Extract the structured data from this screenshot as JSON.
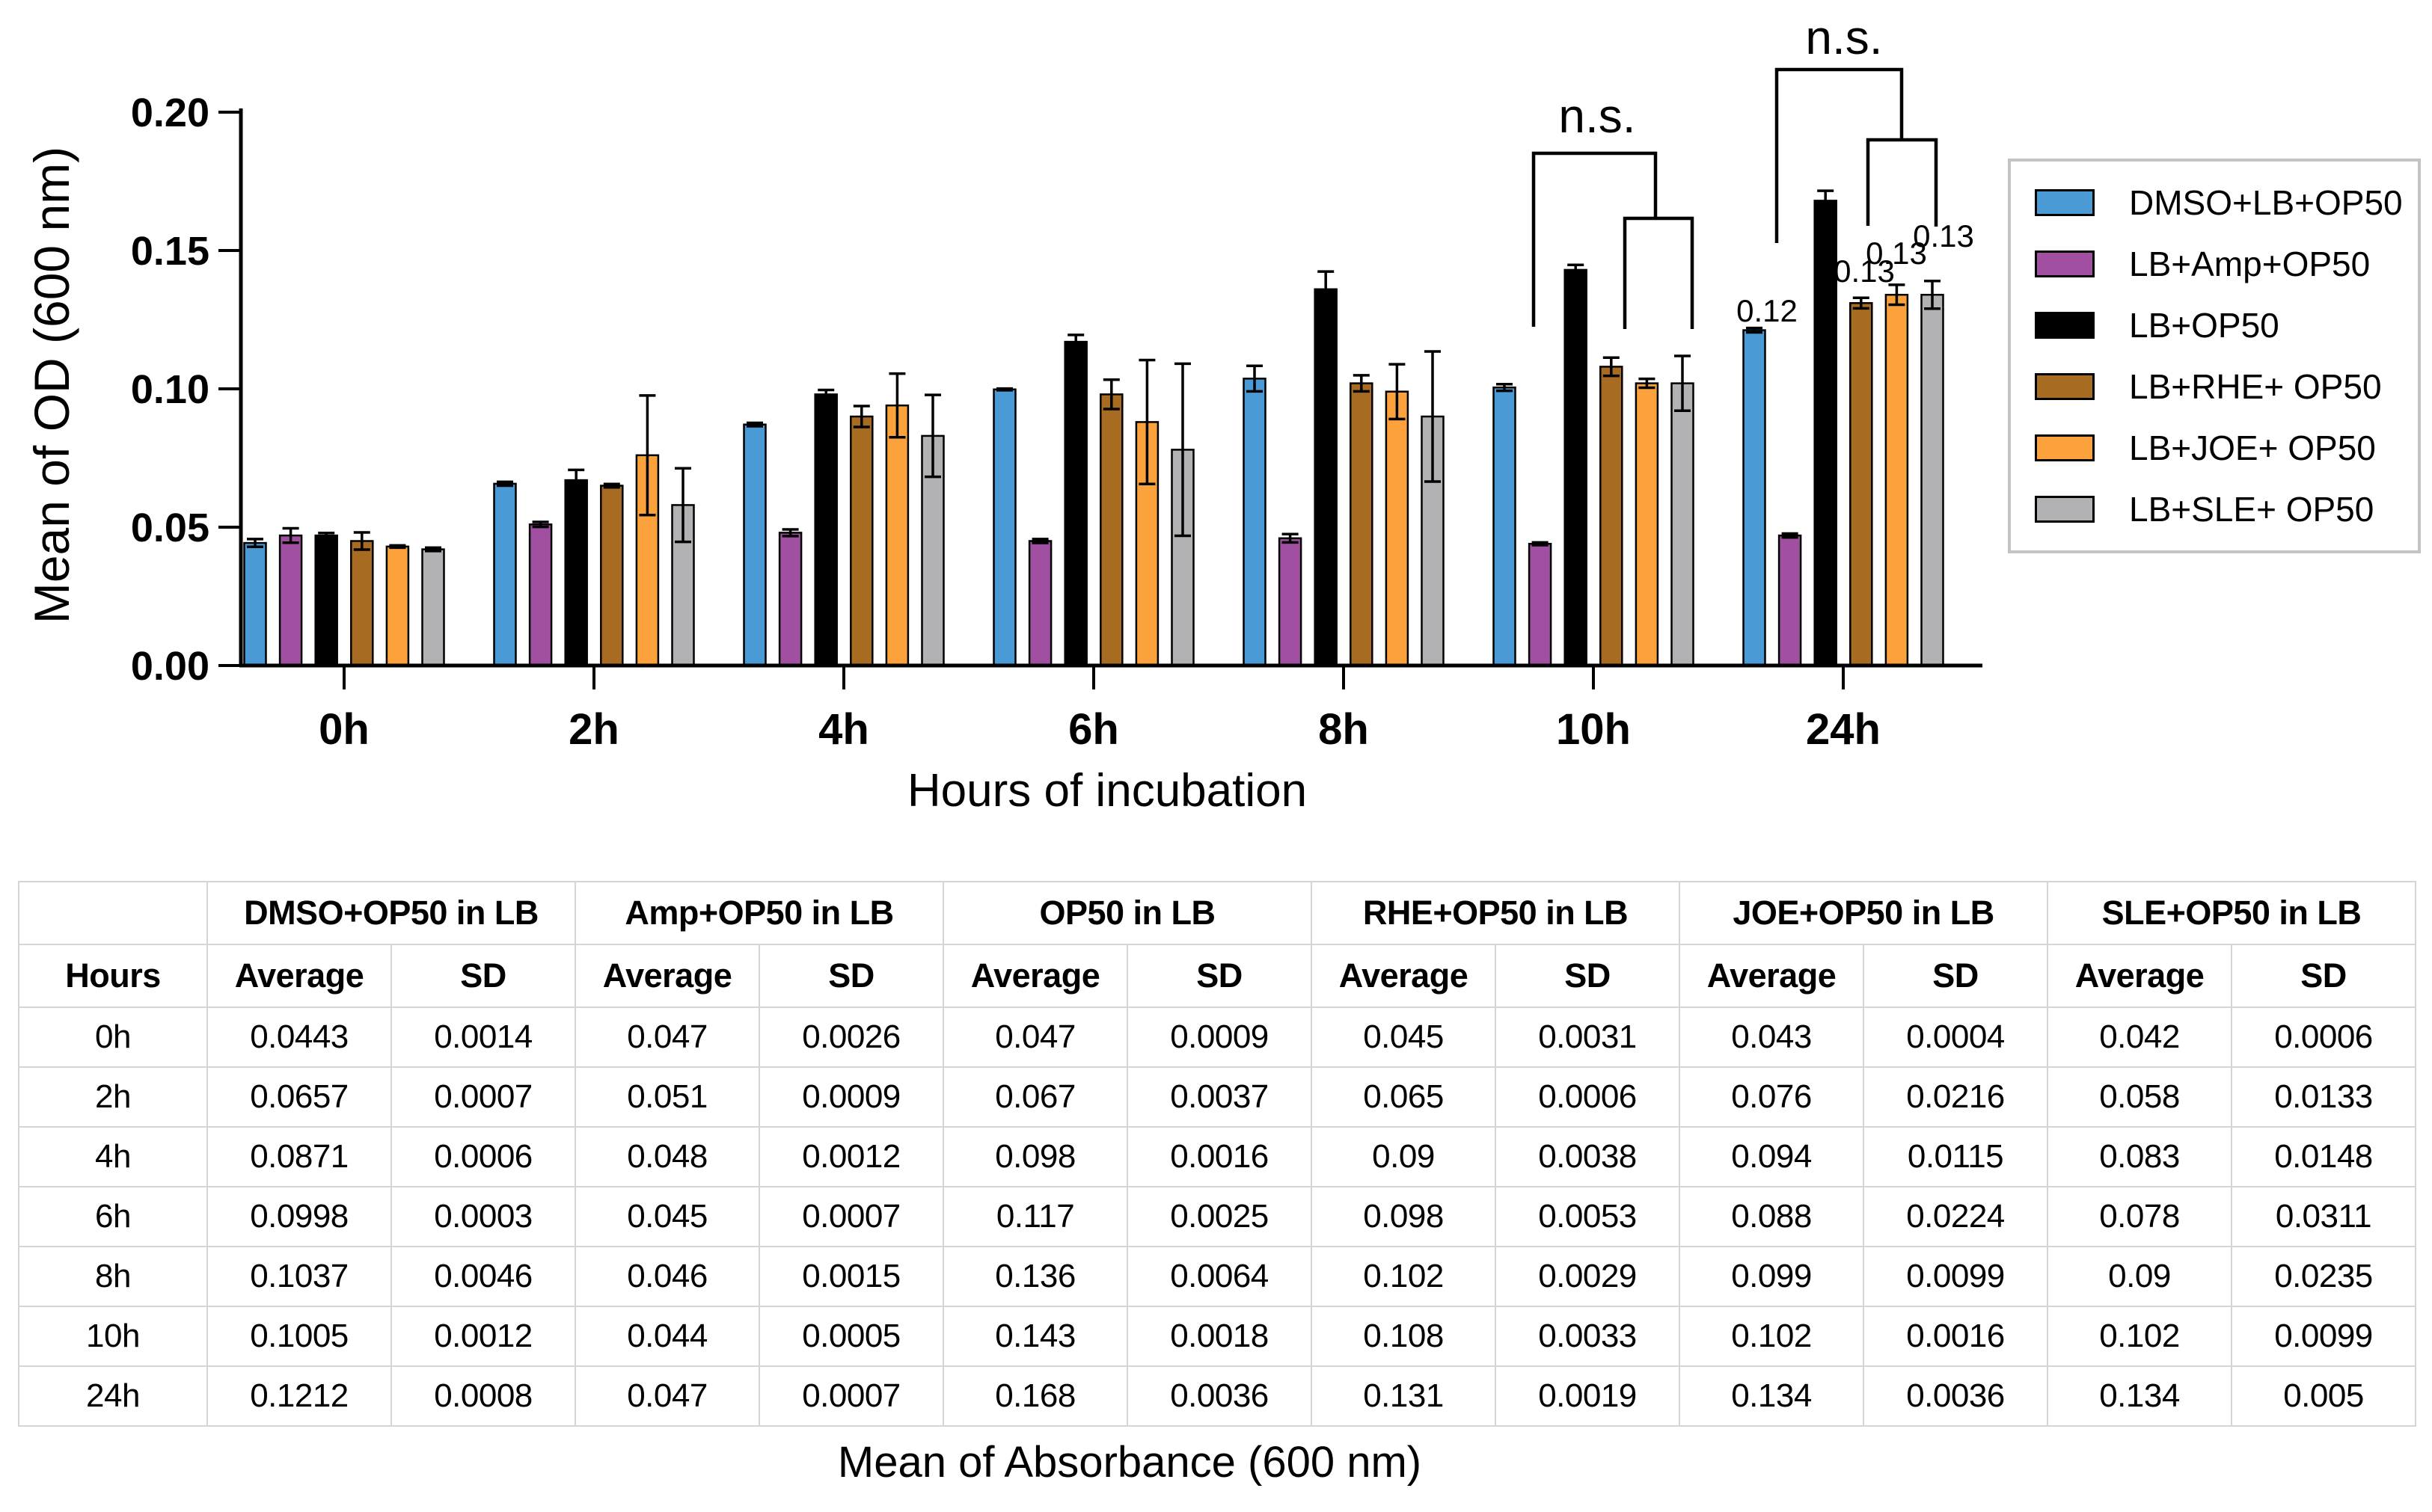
{
  "caption": "Mean of Absorbance (600 nm)",
  "chart_data": {
    "type": "bar",
    "title": "",
    "xlabel": "Hours of incubation",
    "ylabel": "Mean of OD (600 nm)",
    "categories": [
      "0h",
      "2h",
      "4h",
      "6h",
      "8h",
      "10h",
      "24h"
    ],
    "ylim": [
      0,
      0.2
    ],
    "ytick_labels": [
      "0.00",
      "0.05",
      "0.10",
      "0.15",
      "0.20"
    ],
    "grid": false,
    "legend_position": "right",
    "error_bars": "sd",
    "series": [
      {
        "name": "DMSO+LB+OP50",
        "color": "#4A9BD5",
        "values": [
          0.0443,
          0.0657,
          0.0871,
          0.0998,
          0.1037,
          0.1005,
          0.1212
        ],
        "sd": [
          0.0014,
          0.0007,
          0.0006,
          0.0003,
          0.0046,
          0.0012,
          0.0008
        ]
      },
      {
        "name": "LB+Amp+OP50",
        "color": "#A04FA1",
        "values": [
          0.047,
          0.051,
          0.048,
          0.045,
          0.046,
          0.044,
          0.047
        ],
        "sd": [
          0.0026,
          0.0009,
          0.0012,
          0.0007,
          0.0015,
          0.0005,
          0.0007
        ]
      },
      {
        "name": "LB+OP50",
        "color": "#000000",
        "values": [
          0.047,
          0.067,
          0.098,
          0.117,
          0.136,
          0.143,
          0.168
        ],
        "sd": [
          0.0009,
          0.0037,
          0.0016,
          0.0025,
          0.0064,
          0.0018,
          0.0036
        ]
      },
      {
        "name": "LB+RHE+ OP50",
        "color": "#A86B22",
        "values": [
          0.045,
          0.065,
          0.09,
          0.098,
          0.102,
          0.108,
          0.131
        ],
        "sd": [
          0.0031,
          0.0006,
          0.0038,
          0.0053,
          0.0029,
          0.0033,
          0.0019
        ]
      },
      {
        "name": "LB+JOE+ OP50",
        "color": "#FBA23C",
        "values": [
          0.043,
          0.076,
          0.094,
          0.088,
          0.099,
          0.102,
          0.134
        ],
        "sd": [
          0.0004,
          0.0216,
          0.0115,
          0.0224,
          0.0099,
          0.0016,
          0.0036
        ]
      },
      {
        "name": "LB+SLE+ OP50",
        "color": "#B2B2B4",
        "values": [
          0.042,
          0.058,
          0.083,
          0.078,
          0.09,
          0.102,
          0.134
        ],
        "sd": [
          0.0006,
          0.0133,
          0.0148,
          0.0311,
          0.0235,
          0.0099,
          0.005
        ]
      }
    ],
    "annotations": {
      "ns_brackets": [
        {
          "label": "n.s.",
          "label_x": 2135,
          "label_y": 177,
          "outer": [
            [
              2050,
              437
            ],
            [
              2050,
              205
            ],
            [
              2213,
              205
            ],
            [
              2213,
              292
            ]
          ],
          "inner": [
            [
              2172,
              440
            ],
            [
              2172,
              292
            ],
            [
              2262,
              292
            ],
            [
              2262,
              440
            ]
          ]
        },
        {
          "label": "n.s.",
          "label_x": 2465,
          "label_y": 72,
          "outer": [
            [
              2375,
              325
            ],
            [
              2375,
              93
            ],
            [
              2542,
              93
            ],
            [
              2542,
              187
            ]
          ],
          "inner": [
            [
              2497,
              302
            ],
            [
              2497,
              187
            ],
            [
              2588,
              187
            ],
            [
              2588,
              303
            ]
          ]
        }
      ],
      "value_labels": [
        {
          "text": "0.12",
          "x": 2362,
          "y": 430
        },
        {
          "text": "0.13",
          "x": 2492,
          "y": 377
        },
        {
          "text": "0.13",
          "x": 2535,
          "y": 353
        },
        {
          "text": "0.13",
          "x": 2598,
          "y": 330
        }
      ]
    }
  },
  "table": {
    "corner_label": "",
    "hours_header": "Hours",
    "group_headers": [
      "DMSO+OP50 in LB",
      "Amp+OP50 in LB",
      "OP50 in LB",
      "RHE+OP50 in LB",
      "JOE+OP50 in LB",
      "SLE+OP50 in LB"
    ],
    "sub_headers": [
      "Average",
      "SD"
    ],
    "rows": [
      {
        "hour": "0h",
        "values": [
          "0.0443",
          "0.0014",
          "0.047",
          "0.0026",
          "0.047",
          "0.0009",
          "0.045",
          "0.0031",
          "0.043",
          "0.0004",
          "0.042",
          "0.0006"
        ]
      },
      {
        "hour": "2h",
        "values": [
          "0.0657",
          "0.0007",
          "0.051",
          "0.0009",
          "0.067",
          "0.0037",
          "0.065",
          "0.0006",
          "0.076",
          "0.0216",
          "0.058",
          "0.0133"
        ]
      },
      {
        "hour": "4h",
        "values": [
          "0.0871",
          "0.0006",
          "0.048",
          "0.0012",
          "0.098",
          "0.0016",
          "0.09",
          "0.0038",
          "0.094",
          "0.0115",
          "0.083",
          "0.0148"
        ]
      },
      {
        "hour": "6h",
        "values": [
          "0.0998",
          "0.0003",
          "0.045",
          "0.0007",
          "0.117",
          "0.0025",
          "0.098",
          "0.0053",
          "0.088",
          "0.0224",
          "0.078",
          "0.0311"
        ]
      },
      {
        "hour": "8h",
        "values": [
          "0.1037",
          "0.0046",
          "0.046",
          "0.0015",
          "0.136",
          "0.0064",
          "0.102",
          "0.0029",
          "0.099",
          "0.0099",
          "0.09",
          "0.0235"
        ]
      },
      {
        "hour": "10h",
        "values": [
          "0.1005",
          "0.0012",
          "0.044",
          "0.0005",
          "0.143",
          "0.0018",
          "0.108",
          "0.0033",
          "0.102",
          "0.0016",
          "0.102",
          "0.0099"
        ]
      },
      {
        "hour": "24h",
        "values": [
          "0.1212",
          "0.0008",
          "0.047",
          "0.0007",
          "0.168",
          "0.0036",
          "0.131",
          "0.0019",
          "0.134",
          "0.0036",
          "0.134",
          "0.005"
        ]
      }
    ]
  }
}
